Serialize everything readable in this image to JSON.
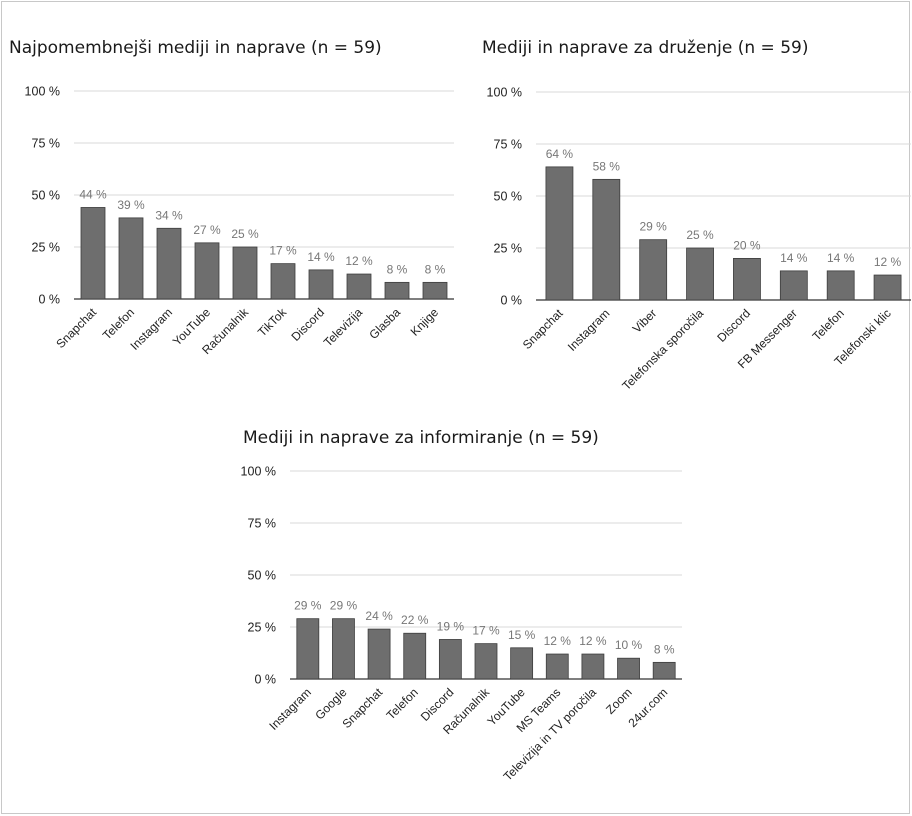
{
  "chart_data": [
    {
      "type": "bar",
      "title": "Najpomembnejši mediji in naprave (n = 59)",
      "categories": [
        "Snapchat",
        "Telefon",
        "Instagram",
        "YouTube",
        "Računalnik",
        "TikTok",
        "Discord",
        "Televizija",
        "Glasba",
        "Knjige"
      ],
      "values": [
        44,
        39,
        34,
        27,
        25,
        17,
        14,
        12,
        8,
        8
      ],
      "data_labels": [
        "44 %",
        "39 %",
        "34 %",
        "27 %",
        "25 %",
        "17 %",
        "14 %",
        "12 %",
        "8 %",
        "8 %"
      ],
      "y_ticks": [
        "0 %",
        "25 %",
        "50 %",
        "75 %",
        "100 %"
      ],
      "ylim": [
        0,
        100
      ],
      "grid": true,
      "bar_color": "#6e6e6e"
    },
    {
      "type": "bar",
      "title": "Mediji in naprave za druženje (n = 59)",
      "categories": [
        "Snapchat",
        "Instagram",
        "Viber",
        "Telefonska sporočila",
        "Discord",
        "FB Messenger",
        "Telefon",
        "Telefonski klic"
      ],
      "values": [
        64,
        58,
        29,
        25,
        20,
        14,
        14,
        12
      ],
      "data_labels": [
        "64 %",
        "58 %",
        "29 %",
        "25 %",
        "20 %",
        "14 %",
        "14 %",
        "12 %"
      ],
      "y_ticks": [
        "0 %",
        "25 %",
        "50 %",
        "75 %",
        "100 %"
      ],
      "ylim": [
        0,
        100
      ],
      "grid": true,
      "bar_color": "#6e6e6e"
    },
    {
      "type": "bar",
      "title": "Mediji in naprave za informiranje (n = 59)",
      "categories": [
        "Instagram",
        "Google",
        "Snapchat",
        "Telefon",
        "Discord",
        "Računalnik",
        "YouTube",
        "MS Teams",
        "Televizija in TV poročila",
        "Zoom",
        "24ur.com"
      ],
      "values": [
        29,
        29,
        24,
        22,
        19,
        17,
        15,
        12,
        12,
        10,
        8
      ],
      "data_labels": [
        "29 %",
        "29 %",
        "24 %",
        "22 %",
        "19 %",
        "17 %",
        "15 %",
        "12 %",
        "12 %",
        "10 %",
        "8 %"
      ],
      "y_ticks": [
        "0 %",
        "25 %",
        "50 %",
        "75 %",
        "100 %"
      ],
      "ylim": [
        0,
        100
      ],
      "grid": true,
      "bar_color": "#6e6e6e"
    }
  ]
}
